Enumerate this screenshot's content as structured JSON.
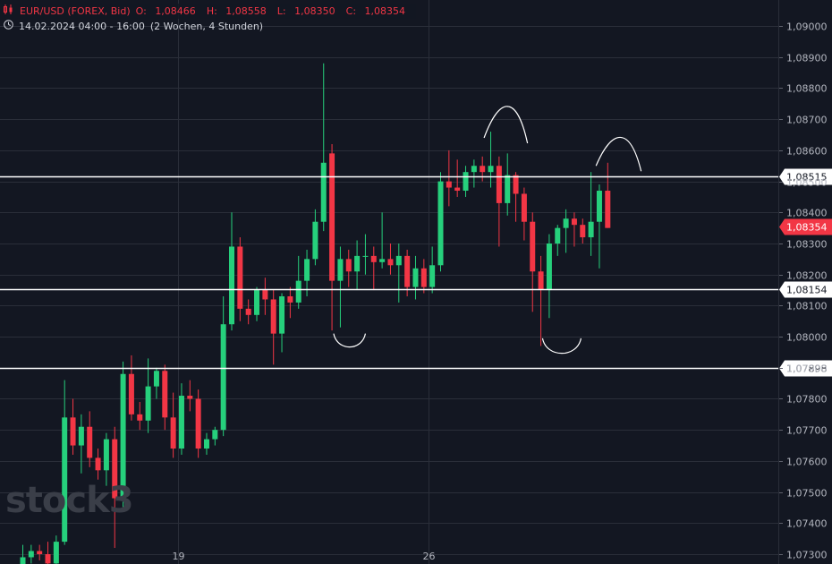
{
  "legend": {
    "symbol_icon": "candles-icon",
    "symbol": "EUR/USD (FOREX, Bid)",
    "open_label": "O:",
    "open": "1,08466",
    "high_label": "H:",
    "high": "1,08558",
    "low_label": "L:",
    "low": "1,08350",
    "close_label": "C:",
    "close": "1,08354",
    "clock_icon": "clock-icon",
    "time_range": "14.02.2024 04:00 - 16:00",
    "period": "(2 Wochen, 4 Stunden)"
  },
  "watermark": "stock3",
  "colors": {
    "background": "#131722",
    "grid": "#2a2e39",
    "up": "#26d07c",
    "down": "#f23645",
    "text": "#d1d4dc",
    "level_line": "#ffffff",
    "current_price": "#f23645"
  },
  "chart_data": {
    "type": "candlestick",
    "y_axis": {
      "range": [
        1.07295,
        1.0906
      ],
      "ticks": [
        "1,07300",
        "1,07400",
        "1,07500",
        "1,07600",
        "1,07700",
        "1,07800",
        "1,07900",
        "1,08000",
        "1,08100",
        "1,08200",
        "1,08300",
        "1,08400",
        "1,08500",
        "1,08600",
        "1,08700",
        "1,08800",
        "1,08900",
        "1,09000"
      ]
    },
    "x_axis": {
      "ticks": [
        {
          "label": "19",
          "index": 18.6
        },
        {
          "label": "26",
          "index": 48.6
        }
      ]
    },
    "candles": [
      {
        "o": 1.0722,
        "h": 1.0733,
        "l": 1.072,
        "c": 1.0729
      },
      {
        "o": 1.0729,
        "h": 1.0733,
        "l": 1.0727,
        "c": 1.0731
      },
      {
        "o": 1.0731,
        "h": 1.0733,
        "l": 1.0728,
        "c": 1.073
      },
      {
        "o": 1.073,
        "h": 1.0734,
        "l": 1.0725,
        "c": 1.0727
      },
      {
        "o": 1.0727,
        "h": 1.0736,
        "l": 1.0725,
        "c": 1.0734
      },
      {
        "o": 1.0734,
        "h": 1.0786,
        "l": 1.0733,
        "c": 1.0774
      },
      {
        "o": 1.0774,
        "h": 1.078,
        "l": 1.0762,
        "c": 1.0765
      },
      {
        "o": 1.0765,
        "h": 1.0775,
        "l": 1.0756,
        "c": 1.0771
      },
      {
        "o": 1.0771,
        "h": 1.0776,
        "l": 1.0758,
        "c": 1.0761
      },
      {
        "o": 1.0761,
        "h": 1.0764,
        "l": 1.0754,
        "c": 1.0757
      },
      {
        "o": 1.0757,
        "h": 1.0769,
        "l": 1.0752,
        "c": 1.0767
      },
      {
        "o": 1.0767,
        "h": 1.0771,
        "l": 1.0732,
        "c": 1.0748
      },
      {
        "o": 1.0748,
        "h": 1.0792,
        "l": 1.0744,
        "c": 1.0788
      },
      {
        "o": 1.0788,
        "h": 1.0794,
        "l": 1.0773,
        "c": 1.0775
      },
      {
        "o": 1.0775,
        "h": 1.0779,
        "l": 1.077,
        "c": 1.0773
      },
      {
        "o": 1.0773,
        "h": 1.0793,
        "l": 1.0769,
        "c": 1.0784
      },
      {
        "o": 1.0784,
        "h": 1.079,
        "l": 1.078,
        "c": 1.0789
      },
      {
        "o": 1.0789,
        "h": 1.0791,
        "l": 1.077,
        "c": 1.0774
      },
      {
        "o": 1.0774,
        "h": 1.0782,
        "l": 1.0761,
        "c": 1.0764
      },
      {
        "o": 1.0764,
        "h": 1.0785,
        "l": 1.0762,
        "c": 1.0781
      },
      {
        "o": 1.0781,
        "h": 1.0786,
        "l": 1.0776,
        "c": 1.078
      },
      {
        "o": 1.078,
        "h": 1.0783,
        "l": 1.0761,
        "c": 1.0764
      },
      {
        "o": 1.0764,
        "h": 1.0769,
        "l": 1.0762,
        "c": 1.0767
      },
      {
        "o": 1.0767,
        "h": 1.0771,
        "l": 1.0765,
        "c": 1.077
      },
      {
        "o": 1.077,
        "h": 1.0813,
        "l": 1.0768,
        "c": 1.0804
      },
      {
        "o": 1.0804,
        "h": 1.084,
        "l": 1.0802,
        "c": 1.0829
      },
      {
        "o": 1.0829,
        "h": 1.0832,
        "l": 1.0805,
        "c": 1.0809
      },
      {
        "o": 1.0809,
        "h": 1.0812,
        "l": 1.0804,
        "c": 1.0807
      },
      {
        "o": 1.0807,
        "h": 1.0816,
        "l": 1.0805,
        "c": 1.0815
      },
      {
        "o": 1.0815,
        "h": 1.0819,
        "l": 1.0807,
        "c": 1.0812
      },
      {
        "o": 1.0812,
        "h": 1.0815,
        "l": 1.0791,
        "c": 1.0801
      },
      {
        "o": 1.0801,
        "h": 1.0814,
        "l": 1.0795,
        "c": 1.0813
      },
      {
        "o": 1.0813,
        "h": 1.0816,
        "l": 1.0806,
        "c": 1.0811
      },
      {
        "o": 1.0811,
        "h": 1.0826,
        "l": 1.0809,
        "c": 1.0818
      },
      {
        "o": 1.0818,
        "h": 1.0828,
        "l": 1.0813,
        "c": 1.0825
      },
      {
        "o": 1.0825,
        "h": 1.0841,
        "l": 1.0823,
        "c": 1.0837
      },
      {
        "o": 1.0837,
        "h": 1.0888,
        "l": 1.0834,
        "c": 1.0856
      },
      {
        "o": 1.0859,
        "h": 1.0862,
        "l": 1.0802,
        "c": 1.0818
      },
      {
        "o": 1.0818,
        "h": 1.0829,
        "l": 1.0803,
        "c": 1.0825
      },
      {
        "o": 1.0825,
        "h": 1.0828,
        "l": 1.0816,
        "c": 1.0821
      },
      {
        "o": 1.0821,
        "h": 1.0831,
        "l": 1.0815,
        "c": 1.0826
      },
      {
        "o": 1.0826,
        "h": 1.0833,
        "l": 1.082,
        "c": 1.0826
      },
      {
        "o": 1.0826,
        "h": 1.0829,
        "l": 1.0815,
        "c": 1.0824
      },
      {
        "o": 1.0824,
        "h": 1.084,
        "l": 1.0822,
        "c": 1.0825
      },
      {
        "o": 1.0825,
        "h": 1.083,
        "l": 1.082,
        "c": 1.0823
      },
      {
        "o": 1.0823,
        "h": 1.083,
        "l": 1.0811,
        "c": 1.0826
      },
      {
        "o": 1.0826,
        "h": 1.0828,
        "l": 1.0813,
        "c": 1.0816
      },
      {
        "o": 1.0816,
        "h": 1.0826,
        "l": 1.0812,
        "c": 1.0822
      },
      {
        "o": 1.0822,
        "h": 1.0825,
        "l": 1.0814,
        "c": 1.0816
      },
      {
        "o": 1.0816,
        "h": 1.0829,
        "l": 1.0814,
        "c": 1.0823
      },
      {
        "o": 1.0823,
        "h": 1.0853,
        "l": 1.0821,
        "c": 1.085
      },
      {
        "o": 1.085,
        "h": 1.086,
        "l": 1.0842,
        "c": 1.0848
      },
      {
        "o": 1.0848,
        "h": 1.0857,
        "l": 1.0845,
        "c": 1.0847
      },
      {
        "o": 1.0847,
        "h": 1.0855,
        "l": 1.0845,
        "c": 1.0853
      },
      {
        "o": 1.0853,
        "h": 1.0857,
        "l": 1.0848,
        "c": 1.0855
      },
      {
        "o": 1.0855,
        "h": 1.0858,
        "l": 1.085,
        "c": 1.0853
      },
      {
        "o": 1.0853,
        "h": 1.0866,
        "l": 1.0848,
        "c": 1.0855
      },
      {
        "o": 1.0855,
        "h": 1.0858,
        "l": 1.0829,
        "c": 1.0843
      },
      {
        "o": 1.0843,
        "h": 1.0859,
        "l": 1.0839,
        "c": 1.0852
      },
      {
        "o": 1.0852,
        "h": 1.0853,
        "l": 1.0837,
        "c": 1.0846
      },
      {
        "o": 1.0846,
        "h": 1.0848,
        "l": 1.0831,
        "c": 1.0837
      },
      {
        "o": 1.0837,
        "h": 1.084,
        "l": 1.0808,
        "c": 1.0821
      },
      {
        "o": 1.0821,
        "h": 1.0826,
        "l": 1.0797,
        "c": 1.0815
      },
      {
        "o": 1.0815,
        "h": 1.0833,
        "l": 1.0806,
        "c": 1.083
      },
      {
        "o": 1.083,
        "h": 1.0836,
        "l": 1.0826,
        "c": 1.0835
      },
      {
        "o": 1.0835,
        "h": 1.0841,
        "l": 1.0827,
        "c": 1.0838
      },
      {
        "o": 1.0838,
        "h": 1.084,
        "l": 1.0829,
        "c": 1.0836
      },
      {
        "o": 1.0836,
        "h": 1.0838,
        "l": 1.083,
        "c": 1.0832
      },
      {
        "o": 1.0832,
        "h": 1.0853,
        "l": 1.0826,
        "c": 1.0837
      },
      {
        "o": 1.0837,
        "h": 1.0849,
        "l": 1.0822,
        "c": 1.0847
      },
      {
        "o": 1.0847,
        "h": 1.0856,
        "l": 1.0835,
        "c": 1.0835
      }
    ],
    "levels": [
      {
        "price": 1.08515,
        "label": "1,08515"
      },
      {
        "price": 1.08154,
        "label": "1,08154"
      },
      {
        "price": 1.07898,
        "label": "1,07898"
      }
    ],
    "current_price": {
      "price": 1.08354,
      "label": "1,08354"
    },
    "annotations": [
      {
        "shape": "cup",
        "from": 37.2,
        "to": 41.0,
        "top": 1.0801,
        "bottom": 1.07987
      },
      {
        "shape": "cup",
        "from": 62.2,
        "to": 66.8,
        "top": 1.07995,
        "bottom": 1.07965
      },
      {
        "shape": "cap",
        "from": 55.2,
        "to": 60.4,
        "bottom": 1.0864,
        "top": 1.08755
      },
      {
        "shape": "cap",
        "from": 68.6,
        "to": 74.0,
        "bottom": 1.0855,
        "top": 1.08652
      }
    ]
  }
}
